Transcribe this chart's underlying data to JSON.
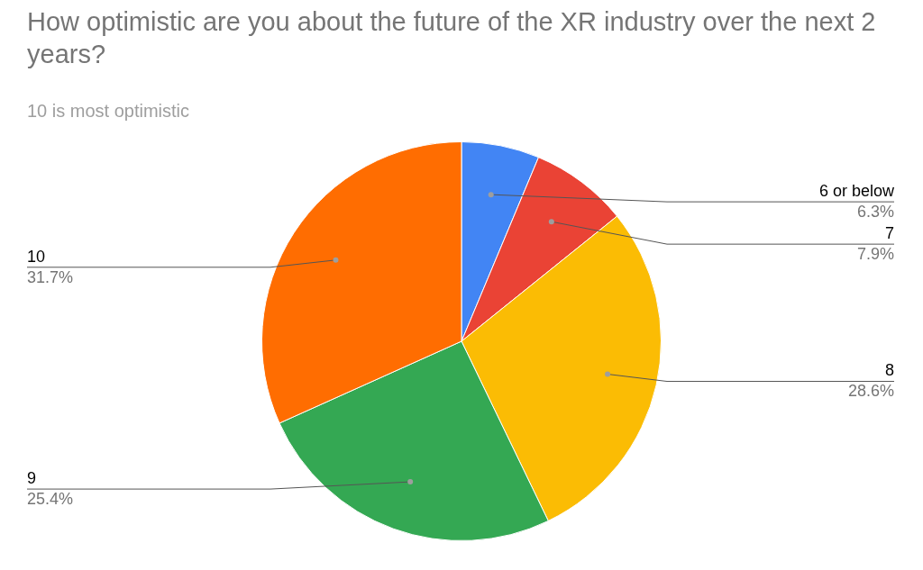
{
  "chart_data": {
    "type": "pie",
    "title": "How optimistic are you about the future of the XR industry over the next 2 years?",
    "subtitle": "10 is most optimistic",
    "categories": [
      "6 or below",
      "7",
      "8",
      "9",
      "10"
    ],
    "values": [
      6.3,
      7.9,
      28.6,
      25.4,
      31.7
    ],
    "value_labels": [
      "6.3%",
      "7.9%",
      "28.6%",
      "25.4%",
      "31.7%"
    ],
    "colors": [
      "#4285f4",
      "#ea4335",
      "#fbbc04",
      "#34a853",
      "#ff6d01"
    ],
    "legend": false
  }
}
